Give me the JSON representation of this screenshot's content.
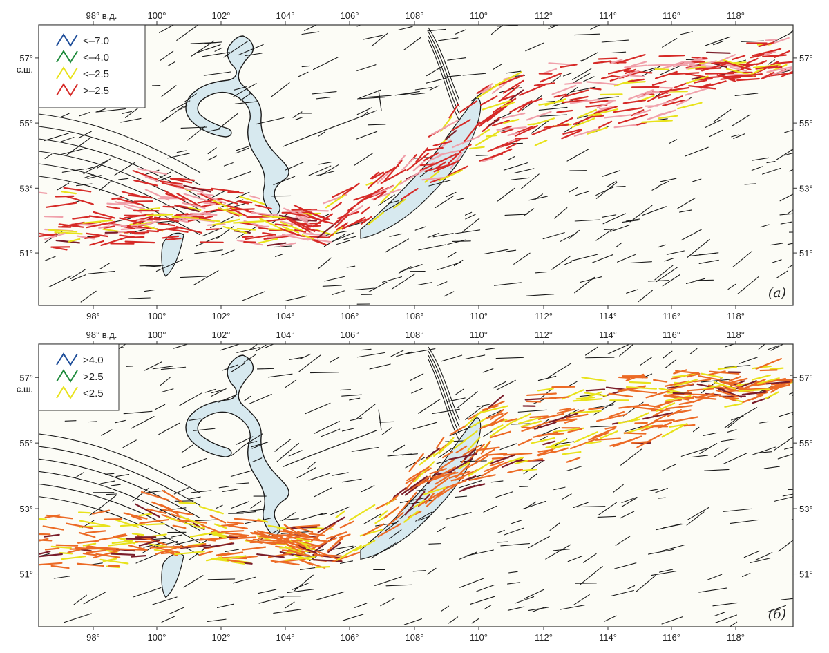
{
  "colors": {
    "background": "#fcfcf6",
    "frame": "#333333",
    "lake": "#d7e9ef",
    "fault_black": "#1a1a1a",
    "blue": "#1f4e9a",
    "green": "#1e8a3c",
    "yellow": "#e8e21a",
    "red": "#d62a27",
    "pink": "#f0a0aa",
    "dark_red": "#7a1d2a",
    "orange": "#ec6a25"
  },
  "axes": {
    "lon_ticks": [
      "98°",
      "100°",
      "102°",
      "104°",
      "106°",
      "108°",
      "110°",
      "112°",
      "114°",
      "116°",
      "118°"
    ],
    "lon_top_first": "98° в.д.",
    "lat_ticks": [
      "57°",
      "55°",
      "53°",
      "51°"
    ],
    "lat_left_first_suffix": "с.ш.",
    "lon_range": [
      96.2,
      119.8
    ],
    "lat_range": [
      49.3,
      57.8
    ]
  },
  "panels": [
    {
      "id": "a",
      "label": "(а)",
      "legend": [
        {
          "label": "<–7.0",
          "color": "#1f4e9a"
        },
        {
          "label": "<–4.0",
          "color": "#1e8a3c"
        },
        {
          "label": "<–2.5",
          "color": "#e8e21a"
        },
        {
          "label": ">–2.5",
          "color": "#d62a27"
        }
      ],
      "palette": [
        "#d62a27",
        "#f0a0aa",
        "#e8e21a",
        "#7a1d2a"
      ]
    },
    {
      "id": "b",
      "label": "(б)",
      "legend": [
        {
          "label": ">4.0",
          "color": "#1f4e9a"
        },
        {
          "label": ">2.5",
          "color": "#1e8a3c"
        },
        {
          "label": "<2.5",
          "color": "#e8e21a"
        }
      ],
      "palette": [
        "#ec6a25",
        "#e8e21a",
        "#7a1d2a",
        "#ec6a25"
      ]
    }
  ]
}
